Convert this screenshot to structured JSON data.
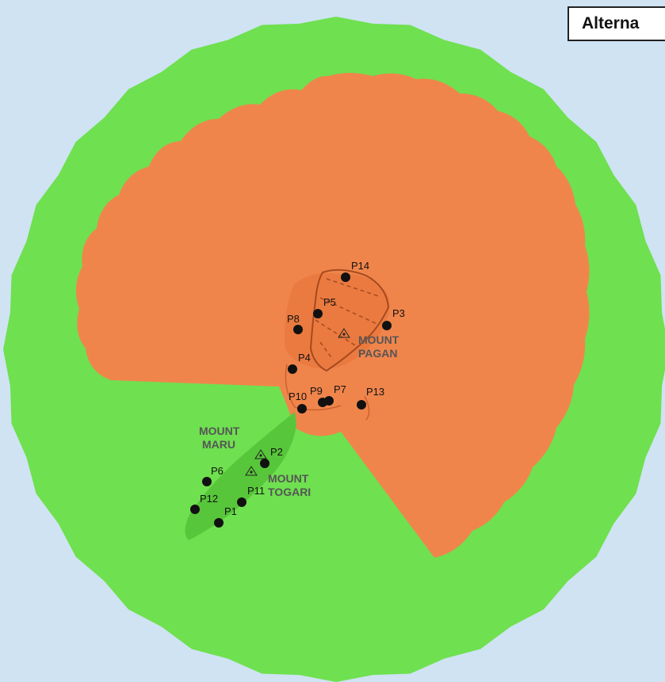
{
  "title": "Alterna",
  "colors": {
    "ocean": "#cfe3f3",
    "outer_zone": "#6fe04f",
    "inner_zone": "#f0854c",
    "island_outline": "#a64a1e",
    "maru_togari_zone": "#58c63a"
  },
  "points": [
    {
      "id": "P1",
      "label": "P1"
    },
    {
      "id": "P2",
      "label": "P2"
    },
    {
      "id": "P3",
      "label": "P3"
    },
    {
      "id": "P4",
      "label": "P4"
    },
    {
      "id": "P5",
      "label": "P5"
    },
    {
      "id": "P6",
      "label": "P6"
    },
    {
      "id": "P7",
      "label": "P7"
    },
    {
      "id": "P8",
      "label": "P8"
    },
    {
      "id": "P9",
      "label": "P9"
    },
    {
      "id": "P10",
      "label": "P10"
    },
    {
      "id": "P11",
      "label": "P11"
    },
    {
      "id": "P12",
      "label": "P12"
    },
    {
      "id": "P13",
      "label": "P13"
    },
    {
      "id": "P14",
      "label": "P14"
    }
  ],
  "volcanoes": [
    {
      "id": "pagan",
      "line1": "MOUNT",
      "line2": "PAGAN",
      "icon": "volcano-triangle-icon"
    },
    {
      "id": "maru",
      "line1": "MOUNT",
      "line2": "MARU",
      "icon": "volcano-triangle-icon"
    },
    {
      "id": "togari",
      "line1": "MOUNT",
      "line2": "TOGARI",
      "icon": "volcano-triangle-icon"
    }
  ]
}
